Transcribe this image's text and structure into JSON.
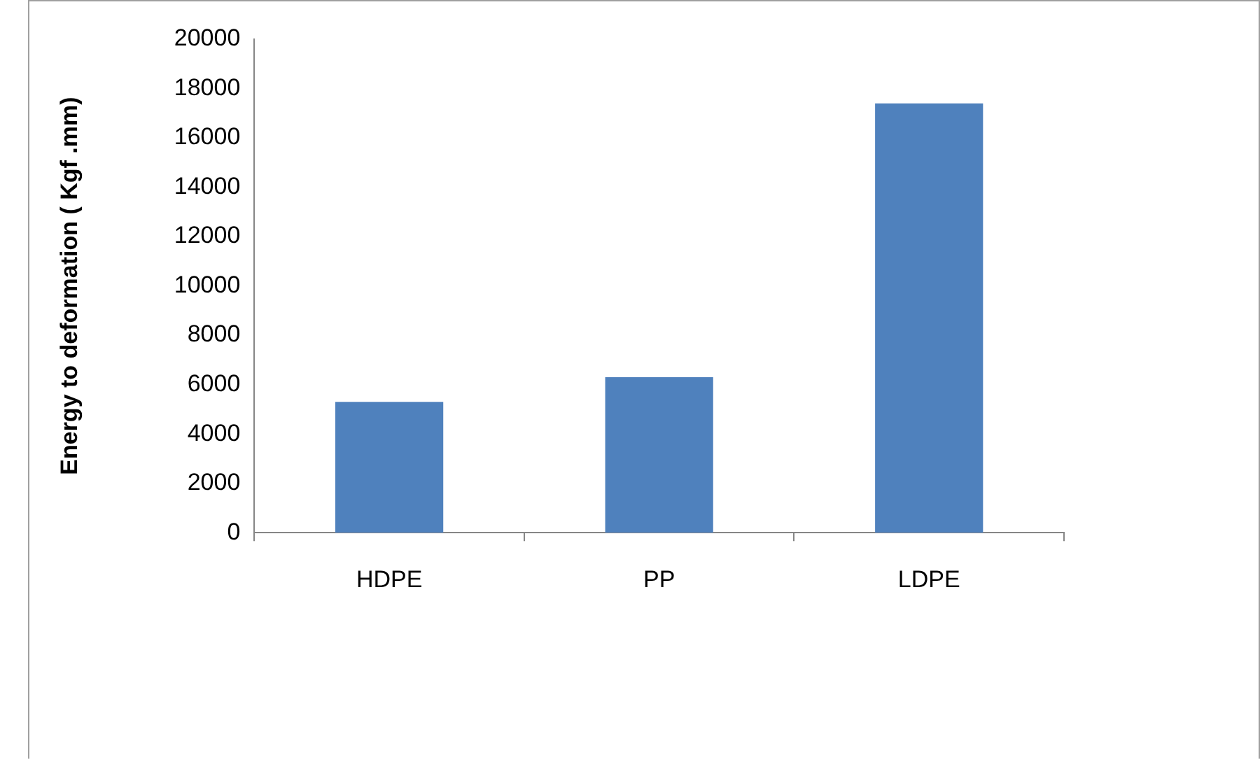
{
  "chart_data": {
    "type": "bar",
    "ylabel": "Energy to deformation ( Kgf .mm)",
    "categories": [
      "HDPE",
      "PP",
      "LDPE"
    ],
    "values": [
      5300,
      6300,
      17400
    ],
    "color": "#4f81bd",
    "ylim": [
      0,
      20000
    ],
    "yticks": [
      0,
      2000,
      4000,
      6000,
      8000,
      10000,
      12000,
      14000,
      16000,
      18000,
      20000
    ],
    "grid": false
  }
}
